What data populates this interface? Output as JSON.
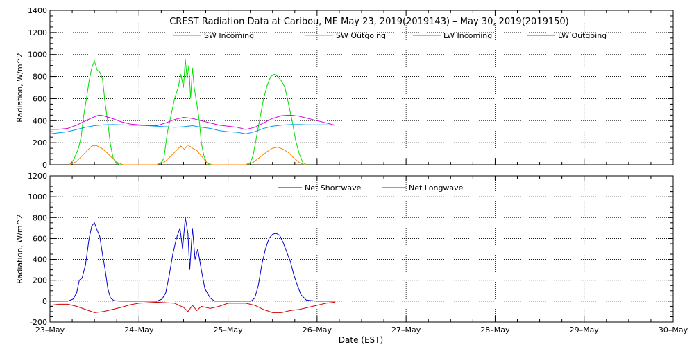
{
  "title": "CREST Radiation Data at Caribou, ME   May 23, 2019(2019143) – May 30, 2019(2019150)",
  "xlabel": "Date (EST)",
  "chart_data": [
    {
      "type": "line",
      "ylabel": "Radiation, W/m^2",
      "xlim": [
        0,
        7
      ],
      "ylim": [
        0,
        1400
      ],
      "yticks": [
        0,
        200,
        400,
        600,
        800,
        1000,
        1200,
        1400
      ],
      "xticks": [
        0,
        1,
        2,
        3,
        4,
        5,
        6,
        7
      ],
      "xtick_labels": [
        "23–May",
        "24–May",
        "25–May",
        "26–May",
        "27–May",
        "28–May",
        "29–May",
        "30–May"
      ],
      "grid": true,
      "legend": "top",
      "series": [
        {
          "name": "SW Incoming",
          "color": "#00dd00",
          "x": [
            0.22,
            0.27,
            0.32,
            0.35,
            0.38,
            0.41,
            0.44,
            0.47,
            0.5,
            0.53,
            0.56,
            0.59,
            0.62,
            0.65,
            0.68,
            0.71,
            0.74,
            0.78,
            0.85,
            1.0,
            1.2,
            1.25,
            1.28,
            1.32,
            1.36,
            1.4,
            1.44,
            1.47,
            1.5,
            1.52,
            1.54,
            1.56,
            1.58,
            1.6,
            1.62,
            1.64,
            1.66,
            1.68,
            1.7,
            1.73,
            1.76,
            1.79,
            1.83,
            2.0,
            2.2,
            2.25,
            2.28,
            2.32,
            2.36,
            2.4,
            2.44,
            2.48,
            2.52,
            2.56,
            2.6,
            2.64,
            2.68,
            2.72,
            2.76,
            2.8,
            2.84,
            2.88
          ],
          "y": [
            0,
            50,
            150,
            250,
            450,
            600,
            760,
            880,
            940,
            860,
            840,
            780,
            560,
            380,
            180,
            60,
            20,
            0,
            0,
            0,
            0,
            20,
            60,
            300,
            450,
            600,
            700,
            820,
            700,
            960,
            780,
            900,
            600,
            880,
            700,
            600,
            500,
            380,
            200,
            80,
            20,
            0,
            0,
            0,
            0,
            20,
            80,
            250,
            430,
            600,
            720,
            800,
            820,
            800,
            760,
            700,
            550,
            400,
            220,
            100,
            20,
            0
          ]
        },
        {
          "name": "SW Outgoing",
          "color": "#ff8000",
          "x": [
            0.22,
            0.3,
            0.36,
            0.42,
            0.47,
            0.52,
            0.58,
            0.64,
            0.7,
            0.76,
            0.82,
            1.2,
            1.28,
            1.36,
            1.42,
            1.47,
            1.51,
            1.55,
            1.6,
            1.65,
            1.7,
            1.76,
            1.82,
            2.2,
            2.28,
            2.36,
            2.44,
            2.5,
            2.56,
            2.62,
            2.68,
            2.74,
            2.8,
            2.86
          ],
          "y": [
            0,
            30,
            80,
            130,
            170,
            175,
            150,
            110,
            60,
            20,
            0,
            0,
            20,
            80,
            130,
            170,
            140,
            180,
            150,
            130,
            80,
            20,
            0,
            0,
            20,
            70,
            120,
            150,
            160,
            140,
            110,
            60,
            20,
            0
          ]
        },
        {
          "name": "LW Incoming",
          "color": "#0099ee",
          "x": [
            0.0,
            0.1,
            0.2,
            0.3,
            0.4,
            0.5,
            0.6,
            0.7,
            0.8,
            0.9,
            1.0,
            1.1,
            1.2,
            1.3,
            1.4,
            1.5,
            1.6,
            1.7,
            1.8,
            1.9,
            2.0,
            2.1,
            2.2,
            2.3,
            2.4,
            2.5,
            2.6,
            2.7,
            2.8,
            2.9,
            3.0,
            3.1,
            3.2
          ],
          "y": [
            280,
            290,
            300,
            320,
            340,
            355,
            362,
            365,
            362,
            360,
            358,
            355,
            350,
            345,
            340,
            345,
            355,
            340,
            330,
            310,
            300,
            295,
            280,
            300,
            330,
            350,
            360,
            365,
            365,
            362,
            362,
            362,
            360
          ]
        },
        {
          "name": "LW Outgoing",
          "color": "#dd00dd",
          "x": [
            0.0,
            0.1,
            0.2,
            0.3,
            0.4,
            0.5,
            0.55,
            0.6,
            0.7,
            0.8,
            0.9,
            1.0,
            1.1,
            1.2,
            1.3,
            1.4,
            1.5,
            1.6,
            1.7,
            1.8,
            1.9,
            2.0,
            2.1,
            2.2,
            2.3,
            2.4,
            2.5,
            2.6,
            2.7,
            2.8,
            2.9,
            3.0,
            3.1,
            3.2
          ],
          "y": [
            320,
            322,
            330,
            360,
            400,
            435,
            450,
            445,
            420,
            390,
            370,
            362,
            358,
            355,
            380,
            410,
            430,
            420,
            400,
            380,
            360,
            350,
            340,
            320,
            340,
            380,
            420,
            445,
            450,
            440,
            420,
            400,
            380,
            360
          ]
        }
      ]
    },
    {
      "type": "line",
      "ylabel": "Radiation, W/m^2",
      "xlim": [
        0,
        7
      ],
      "ylim": [
        -200,
        1200
      ],
      "yticks": [
        -200,
        0,
        200,
        400,
        600,
        800,
        1000,
        1200
      ],
      "xticks": [
        0,
        1,
        2,
        3,
        4,
        5,
        6,
        7
      ],
      "xtick_labels": [
        "23–May",
        "24–May",
        "25–May",
        "26–May",
        "27–May",
        "28–May",
        "29–May",
        "30–May"
      ],
      "grid": true,
      "legend": "top",
      "series": [
        {
          "name": "Net Shortwave",
          "color": "#0000cc",
          "x": [
            0.0,
            0.2,
            0.26,
            0.3,
            0.33,
            0.36,
            0.4,
            0.44,
            0.47,
            0.5,
            0.53,
            0.56,
            0.59,
            0.62,
            0.65,
            0.68,
            0.72,
            0.78,
            0.85,
            1.0,
            1.2,
            1.26,
            1.3,
            1.34,
            1.38,
            1.42,
            1.46,
            1.49,
            1.52,
            1.55,
            1.57,
            1.6,
            1.63,
            1.66,
            1.7,
            1.74,
            1.8,
            1.85,
            2.0,
            2.2,
            2.26,
            2.3,
            2.34,
            2.38,
            2.42,
            2.46,
            2.5,
            2.54,
            2.58,
            2.62,
            2.66,
            2.7,
            2.74,
            2.78,
            2.82,
            2.88,
            3.0,
            3.2
          ],
          "y": [
            0,
            0,
            20,
            80,
            200,
            220,
            350,
            600,
            720,
            750,
            680,
            620,
            450,
            300,
            120,
            30,
            5,
            0,
            0,
            0,
            0,
            20,
            80,
            250,
            450,
            600,
            700,
            500,
            800,
            650,
            300,
            700,
            400,
            500,
            300,
            120,
            30,
            0,
            0,
            0,
            0,
            30,
            150,
            350,
            500,
            600,
            640,
            650,
            630,
            560,
            470,
            380,
            250,
            150,
            60,
            10,
            0,
            0
          ]
        },
        {
          "name": "Net Longwave",
          "color": "#cc0000",
          "x": [
            0.0,
            0.1,
            0.2,
            0.3,
            0.4,
            0.5,
            0.6,
            0.7,
            0.8,
            0.9,
            1.0,
            1.2,
            1.4,
            1.5,
            1.55,
            1.6,
            1.65,
            1.7,
            1.8,
            1.9,
            2.0,
            2.2,
            2.3,
            2.4,
            2.5,
            2.6,
            2.7,
            2.8,
            2.9,
            3.0,
            3.1,
            3.2
          ],
          "y": [
            -40,
            -30,
            -30,
            -50,
            -80,
            -110,
            -100,
            -80,
            -60,
            -35,
            -20,
            -10,
            -20,
            -60,
            -100,
            -40,
            -90,
            -50,
            -70,
            -50,
            -20,
            -20,
            -40,
            -80,
            -110,
            -110,
            -90,
            -80,
            -60,
            -40,
            -20,
            -10
          ]
        }
      ]
    }
  ]
}
